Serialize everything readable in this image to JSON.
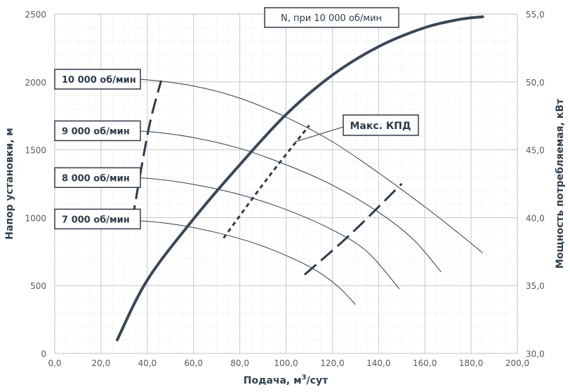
{
  "chart_data": {
    "type": "line",
    "xlabel": "Подача, м",
    "xlabel_sup": "3",
    "xlabel_suffix": "/сут",
    "ylabel": "Напор установки, м",
    "y2label": "Мощность потребляемая, кВт",
    "xlim": [
      0,
      200
    ],
    "ylim": [
      0,
      2500
    ],
    "y2lim": [
      30,
      55
    ],
    "xticks": [
      "0,0",
      "20,0",
      "40,0",
      "60,0",
      "80,0",
      "100,0",
      "120,0",
      "140,0",
      "160,0",
      "180,0",
      "200,0"
    ],
    "yticks": [
      "0",
      "500",
      "1000",
      "1500",
      "2000",
      "2500"
    ],
    "y2ticks": [
      "30,0",
      "35,0",
      "40,0",
      "45,0",
      "50,0",
      "55,0"
    ],
    "title_box": "N, при 10 000 об/мин",
    "callout": "Макс. КПД",
    "colors": {
      "curve": "#2f3b4a",
      "power": "#3a4756",
      "grid": "#c8c8c8"
    },
    "series": [
      {
        "name": "10 000 об/мин",
        "x": [
          27,
          40,
          60,
          80,
          100,
          120,
          140,
          160,
          175,
          185
        ],
        "y": [
          2020,
          2015,
          1970,
          1880,
          1740,
          1560,
          1330,
          1080,
          880,
          740
        ]
      },
      {
        "name": "9 000 об/мин",
        "x": [
          24,
          40,
          60,
          80,
          100,
          120,
          140,
          155,
          167
        ],
        "y": [
          1640,
          1635,
          1590,
          1510,
          1390,
          1240,
          1040,
          840,
          600
        ]
      },
      {
        "name": "8 000 об/мин",
        "x": [
          21,
          40,
          60,
          80,
          100,
          120,
          135,
          149
        ],
        "y": [
          1295,
          1290,
          1245,
          1170,
          1060,
          910,
          750,
          475
        ]
      },
      {
        "name": "7 000 об/мин",
        "x": [
          19,
          30,
          50,
          70,
          90,
          110,
          122,
          130
        ],
        "y": [
          990,
          985,
          955,
          890,
          790,
          640,
          500,
          360
        ]
      },
      {
        "name": "N",
        "axis": "right",
        "x": [
          27,
          40,
          60,
          80,
          100,
          120,
          140,
          160,
          175,
          185
        ],
        "y": [
          31.0,
          35.4,
          39.9,
          43.9,
          47.6,
          50.5,
          52.6,
          54.0,
          54.6,
          54.8
        ]
      },
      {
        "name": "",
        "style": "long-dash",
        "x": [
          33.5,
          40.5,
          46
        ],
        "y": [
          980,
          1645,
          2010
        ]
      },
      {
        "name": "",
        "style": "short-dash",
        "x": [
          73,
          92,
          110
        ],
        "y": [
          850,
          1290,
          1680
        ]
      },
      {
        "name": "",
        "style": "long-dash",
        "x": [
          108,
          128,
          150
        ],
        "y": [
          580,
          880,
          1250
        ]
      }
    ]
  }
}
